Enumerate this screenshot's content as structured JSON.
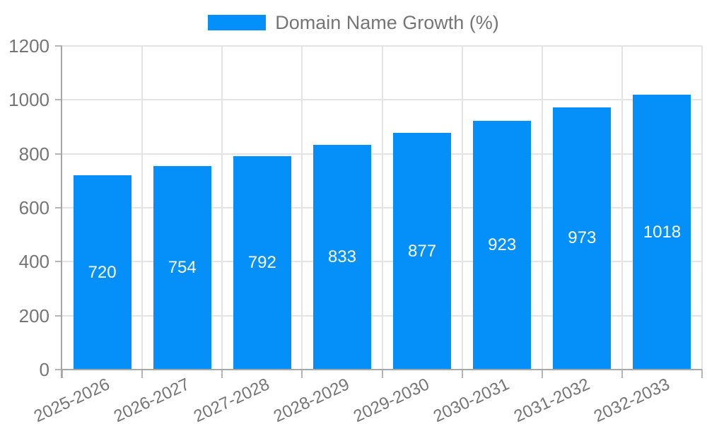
{
  "legend": {
    "series_label": "Domain Name Growth (%)",
    "swatch_color": "#0590f9"
  },
  "chart_data": {
    "type": "bar",
    "title": "Domain Name Growth (%)",
    "categories": [
      "2025-2026",
      "2026-2027",
      "2027-2028",
      "2028-2029",
      "2029-2030",
      "2030-2031",
      "2031-2032",
      "2032-2033"
    ],
    "values": [
      720,
      754,
      792,
      833,
      877,
      923,
      973,
      1018
    ],
    "xlabel": "",
    "ylabel": "",
    "ylim": [
      0,
      1200
    ],
    "yticks": [
      0,
      200,
      400,
      600,
      800,
      1000,
      1200
    ],
    "grid": true,
    "legend_position": "top-center",
    "value_labels_position": "inside-middle",
    "x_tick_rotation_deg": -25,
    "colors": {
      "bar": "#0590f9",
      "grid": "#e3e3e3",
      "axis": "#a6a6a6",
      "tick_mark": "#b5b5b5",
      "tick_text": "#757575",
      "value_label_text": "#ffffff",
      "background": "#ffffff"
    }
  }
}
